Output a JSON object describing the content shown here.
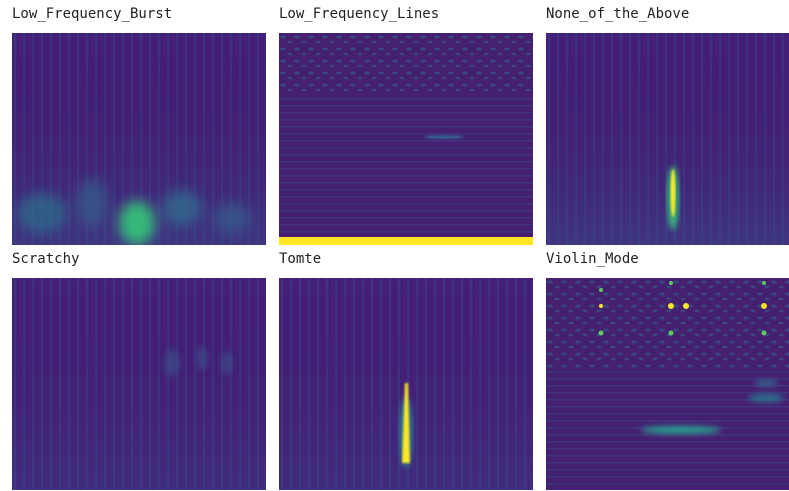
{
  "panels": [
    {
      "title": "Low_Frequency_Burst"
    },
    {
      "title": "Low_Frequency_Lines"
    },
    {
      "title": "None_of_the_Above"
    },
    {
      "title": "Scratchy"
    },
    {
      "title": "Tomte"
    },
    {
      "title": "Violin_Mode"
    }
  ]
}
